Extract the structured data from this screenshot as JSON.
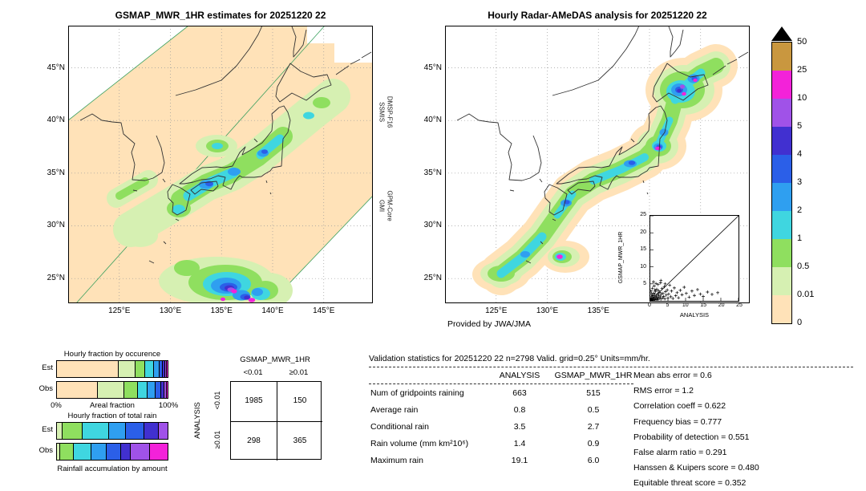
{
  "palette": {
    "cream": "#ffe2b8",
    "pale_green": "#d6f0b2",
    "green": "#8fdf5f",
    "cyan": "#3fd6e0",
    "light_blue": "#2f9ff0",
    "blue": "#2b5fe8",
    "navy": "#4130d0",
    "purple": "#a052e8",
    "magenta": "#f322d9",
    "tan": "#c9973f",
    "over": "#000000"
  },
  "colorbar": {
    "units": "mm/hr",
    "labels": [
      "50",
      "25",
      "10",
      "5",
      "4",
      "3",
      "2",
      "1",
      "0.5",
      "0.01",
      "0"
    ],
    "segments_top_to_bottom": [
      "tan",
      "magenta",
      "purple",
      "navy",
      "blue",
      "light_blue",
      "cyan",
      "green",
      "pale_green",
      "cream"
    ]
  },
  "chart_data": [
    {
      "type": "heatmap",
      "id": "gsmap-precip-map",
      "title": "GSMAP_MWR_1HR estimates for 20251220 22",
      "x_ticks": [
        {
          "value": 125,
          "label": "125°E"
        },
        {
          "value": 130,
          "label": "130°E"
        },
        {
          "value": 135,
          "label": "135°E"
        },
        {
          "value": 140,
          "label": "140°E"
        },
        {
          "value": 145,
          "label": "145°E"
        }
      ],
      "y_ticks": [
        {
          "value": 45,
          "label": "45°N"
        },
        {
          "value": 40,
          "label": "40°N"
        },
        {
          "value": 35,
          "label": "35°N"
        },
        {
          "value": 30,
          "label": "30°N"
        },
        {
          "value": 25,
          "label": "25°N"
        }
      ],
      "side_labels": [
        {
          "l1": "DMSP-F16",
          "l2": "SSMIS"
        },
        {
          "l1": "GPM-Core",
          "l2": "GMI"
        }
      ],
      "scale_levels_mm_hr": [
        0,
        0.01,
        0.5,
        1,
        2,
        3,
        4,
        5,
        10,
        25,
        50
      ]
    },
    {
      "type": "heatmap",
      "id": "radar-amedas-map",
      "title": "Hourly Radar-AMeDAS analysis for 20251220 22",
      "credit": "Provided by JWA/JMA",
      "x_ticks": [
        {
          "value": 125,
          "label": "125°E"
        },
        {
          "value": 130,
          "label": "130°E"
        },
        {
          "value": 135,
          "label": "135°E"
        }
      ],
      "y_ticks": [
        {
          "value": 45,
          "label": "45°N"
        },
        {
          "value": 40,
          "label": "40°N"
        },
        {
          "value": 35,
          "label": "35°N"
        },
        {
          "value": 30,
          "label": "30°N"
        },
        {
          "value": 25,
          "label": "25°N"
        }
      ],
      "scale_levels_mm_hr": [
        0,
        0.01,
        0.5,
        1,
        2,
        3,
        4,
        5,
        10,
        25,
        50
      ]
    },
    {
      "type": "scatter",
      "id": "validation-scatter",
      "xlabel": "ANALYSIS",
      "ylabel": "GSMAP_MWR_1HR",
      "xlim": [
        0,
        25
      ],
      "ylim": [
        0,
        25
      ],
      "x_ticks": [
        0,
        5,
        10,
        15,
        20,
        25
      ],
      "y_ticks": [
        5,
        10,
        15,
        20,
        25
      ],
      "identity_line": true,
      "points": [
        [
          0.1,
          0.1
        ],
        [
          0.2,
          0.6
        ],
        [
          0.3,
          0.2
        ],
        [
          0.3,
          1.2
        ],
        [
          0.4,
          0.4
        ],
        [
          0.5,
          0.1
        ],
        [
          0.5,
          1.8
        ],
        [
          0.6,
          0.9
        ],
        [
          0.7,
          0.3
        ],
        [
          0.8,
          1.5
        ],
        [
          0.9,
          0.2
        ],
        [
          1.0,
          0.7
        ],
        [
          1.0,
          2.3
        ],
        [
          1.1,
          1.1
        ],
        [
          1.2,
          0.4
        ],
        [
          1.3,
          1.9
        ],
        [
          1.4,
          0.8
        ],
        [
          1.5,
          2.8
        ],
        [
          1.6,
          0.3
        ],
        [
          1.7,
          1.4
        ],
        [
          1.8,
          3.4
        ],
        [
          1.9,
          0.6
        ],
        [
          2.0,
          1.0
        ],
        [
          2.1,
          2.1
        ],
        [
          2.2,
          0.4
        ],
        [
          2.3,
          3.0
        ],
        [
          2.4,
          1.6
        ],
        [
          2.5,
          0.8
        ],
        [
          2.7,
          2.5
        ],
        [
          2.8,
          1.2
        ],
        [
          3.0,
          0.5
        ],
        [
          3.0,
          6.0
        ],
        [
          3.1,
          1.9
        ],
        [
          3.3,
          3.6
        ],
        [
          3.5,
          0.9
        ],
        [
          3.6,
          2.2
        ],
        [
          3.8,
          1.3
        ],
        [
          4.0,
          4.2
        ],
        [
          4.1,
          0.6
        ],
        [
          4.3,
          2.7
        ],
        [
          4.5,
          1.7
        ],
        [
          4.8,
          3.2
        ],
        [
          5.0,
          0.8
        ],
        [
          5.2,
          2.0
        ],
        [
          5.5,
          4.6
        ],
        [
          5.8,
          1.2
        ],
        [
          6.0,
          2.9
        ],
        [
          6.4,
          0.7
        ],
        [
          6.8,
          3.8
        ],
        [
          7.2,
          1.5
        ],
        [
          7.6,
          2.4
        ],
        [
          8.0,
          0.9
        ],
        [
          8.5,
          3.1
        ],
        [
          9.0,
          1.8
        ],
        [
          9.6,
          4.0
        ],
        [
          10.2,
          2.2
        ],
        [
          11.0,
          1.1
        ],
        [
          11.8,
          2.9
        ],
        [
          12.5,
          1.6
        ],
        [
          13.4,
          3.3
        ],
        [
          14.2,
          2.0
        ],
        [
          15.0,
          1.3
        ],
        [
          16.2,
          2.6
        ],
        [
          17.5,
          1.9
        ],
        [
          19.1,
          2.4
        ],
        [
          0.2,
          2.9
        ],
        [
          0.6,
          3.7
        ],
        [
          1.1,
          4.4
        ],
        [
          1.6,
          5.1
        ],
        [
          2.2,
          4.8
        ],
        [
          0.9,
          5.6
        ],
        [
          2.9,
          5.3
        ],
        [
          4.2,
          5.0
        ],
        [
          0.4,
          2.2
        ],
        [
          1.3,
          3.2
        ]
      ]
    },
    {
      "type": "bar",
      "id": "fraction-by-occurrence",
      "stacked": true,
      "title": "Hourly fraction by occurence",
      "xlabel": "Areal fraction",
      "x_tick_labels": [
        "0%",
        "100%"
      ],
      "categories": [
        "Est",
        "Obs"
      ],
      "series": [
        {
          "name": "0-0.01",
          "color": "cream",
          "values": [
            56,
            37
          ]
        },
        {
          "name": "0.01-0.5",
          "color": "pale_green",
          "values": [
            15,
            24
          ]
        },
        {
          "name": "0.5-1",
          "color": "green",
          "values": [
            9,
            12
          ]
        },
        {
          "name": "1-2",
          "color": "cyan",
          "values": [
            8,
            9
          ]
        },
        {
          "name": "2-3",
          "color": "light_blue",
          "values": [
            5,
            7
          ]
        },
        {
          "name": "3-4",
          "color": "blue",
          "values": [
            3,
            5
          ]
        },
        {
          "name": "4-5",
          "color": "navy",
          "values": [
            2,
            3
          ]
        },
        {
          "name": "5-10",
          "color": "purple",
          "values": [
            1.5,
            2
          ]
        },
        {
          "name": "10-25",
          "color": "magenta",
          "values": [
            0.5,
            1
          ]
        }
      ]
    },
    {
      "type": "bar",
      "id": "fraction-of-total-rain",
      "stacked": true,
      "title": "Hourly fraction of total rain",
      "xlabel": "Rainfall accumulation by amount",
      "categories": [
        "Est",
        "Obs"
      ],
      "series": [
        {
          "name": "0.01-0.5",
          "color": "pale_green",
          "values": [
            5,
            3
          ]
        },
        {
          "name": "0.5-1",
          "color": "green",
          "values": [
            18,
            12
          ]
        },
        {
          "name": "1-2",
          "color": "cyan",
          "values": [
            24,
            16
          ]
        },
        {
          "name": "2-3",
          "color": "light_blue",
          "values": [
            15,
            14
          ]
        },
        {
          "name": "3-4",
          "color": "blue",
          "values": [
            17,
            13
          ]
        },
        {
          "name": "4-5",
          "color": "navy",
          "values": [
            13,
            9
          ]
        },
        {
          "name": "5-10",
          "color": "purple",
          "values": [
            8,
            17
          ]
        },
        {
          "name": "10-25",
          "color": "magenta",
          "values": [
            0,
            16
          ]
        }
      ]
    },
    {
      "type": "table",
      "id": "contingency-table",
      "title": "GSMAP_MWR_1HR",
      "columns": [
        "<0.01",
        "≥0.01"
      ],
      "row_labels": [
        "<0.01",
        "≥0.01"
      ],
      "side_label": "ANALYSIS",
      "values": [
        [
          "1985",
          "150"
        ],
        [
          "298",
          "365"
        ]
      ]
    },
    {
      "type": "table",
      "id": "validation-stats",
      "header": "Validation statistics for 20251220 22  n=2798 Valid. grid=0.25° Units=mm/hr.",
      "columns": [
        "ANALYSIS",
        "GSMAP_MWR_1HR"
      ],
      "rows": [
        [
          "Num of gridpoints raining",
          "663",
          "515"
        ],
        [
          "Average rain",
          "0.8",
          "0.5"
        ],
        [
          "Conditional rain",
          "3.5",
          "2.7"
        ],
        [
          "Rain volume (mm km²10⁶)",
          "1.4",
          "0.9"
        ],
        [
          "Maximum rain",
          "19.1",
          "6.0"
        ]
      ],
      "metrics": [
        [
          "Mean abs error",
          "0.6"
        ],
        [
          "RMS error",
          "1.2"
        ],
        [
          "Correlation coeff",
          "0.622"
        ],
        [
          "Frequency bias",
          "0.777"
        ],
        [
          "Probability of detection",
          "0.551"
        ],
        [
          "False alarm ratio",
          "0.291"
        ],
        [
          "Hanssen & Kuipers score",
          "0.480"
        ],
        [
          "Equitable threat score",
          "0.352"
        ]
      ]
    }
  ]
}
